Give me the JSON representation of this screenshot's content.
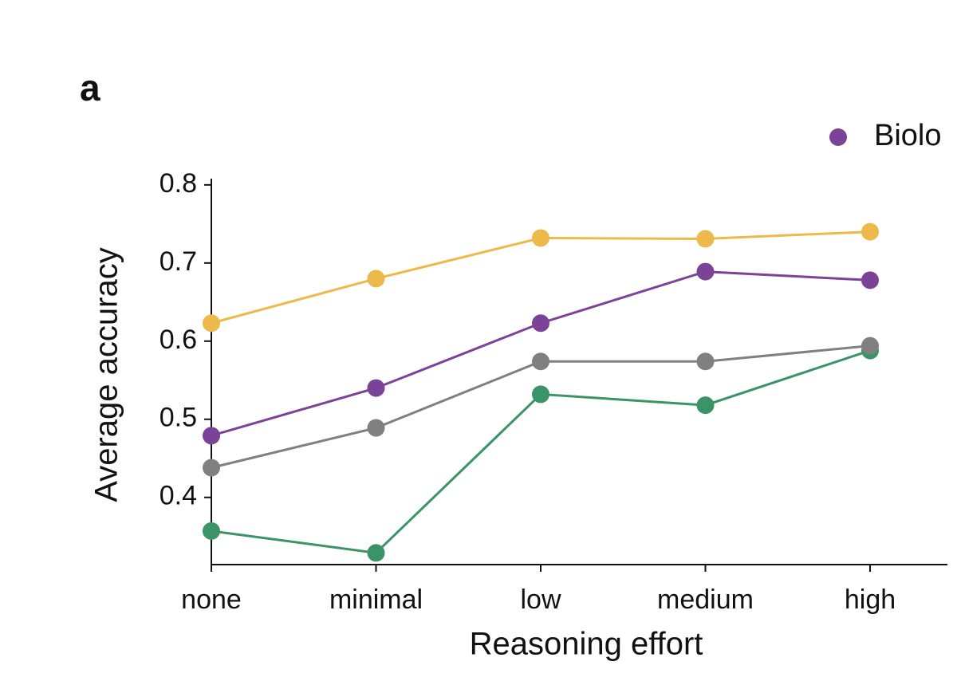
{
  "chart_data": {
    "type": "line",
    "panel_label": "a",
    "x_label": "Reasoning effort",
    "y_label": "Average accuracy",
    "categories": [
      "none",
      "minimal",
      "low",
      "medium",
      "high"
    ],
    "series": [
      {
        "name": "Biolo",
        "color": "#7b4397",
        "values": [
          0.479,
          0.54,
          0.623,
          0.689,
          0.678
        ]
      },
      {
        "color": "#edb94a",
        "values": [
          0.623,
          0.68,
          0.732,
          0.731,
          0.74
        ]
      },
      {
        "color": "#3a9467",
        "values": [
          0.357,
          0.329,
          0.532,
          0.518,
          0.588
        ]
      },
      {
        "color": "#808080",
        "values": [
          0.438,
          0.489,
          0.574,
          0.574,
          0.594
        ]
      }
    ],
    "ylim": [
      0.314,
      0.808
    ],
    "yticks": [
      0.4,
      0.5,
      0.6,
      0.7,
      0.8
    ]
  }
}
